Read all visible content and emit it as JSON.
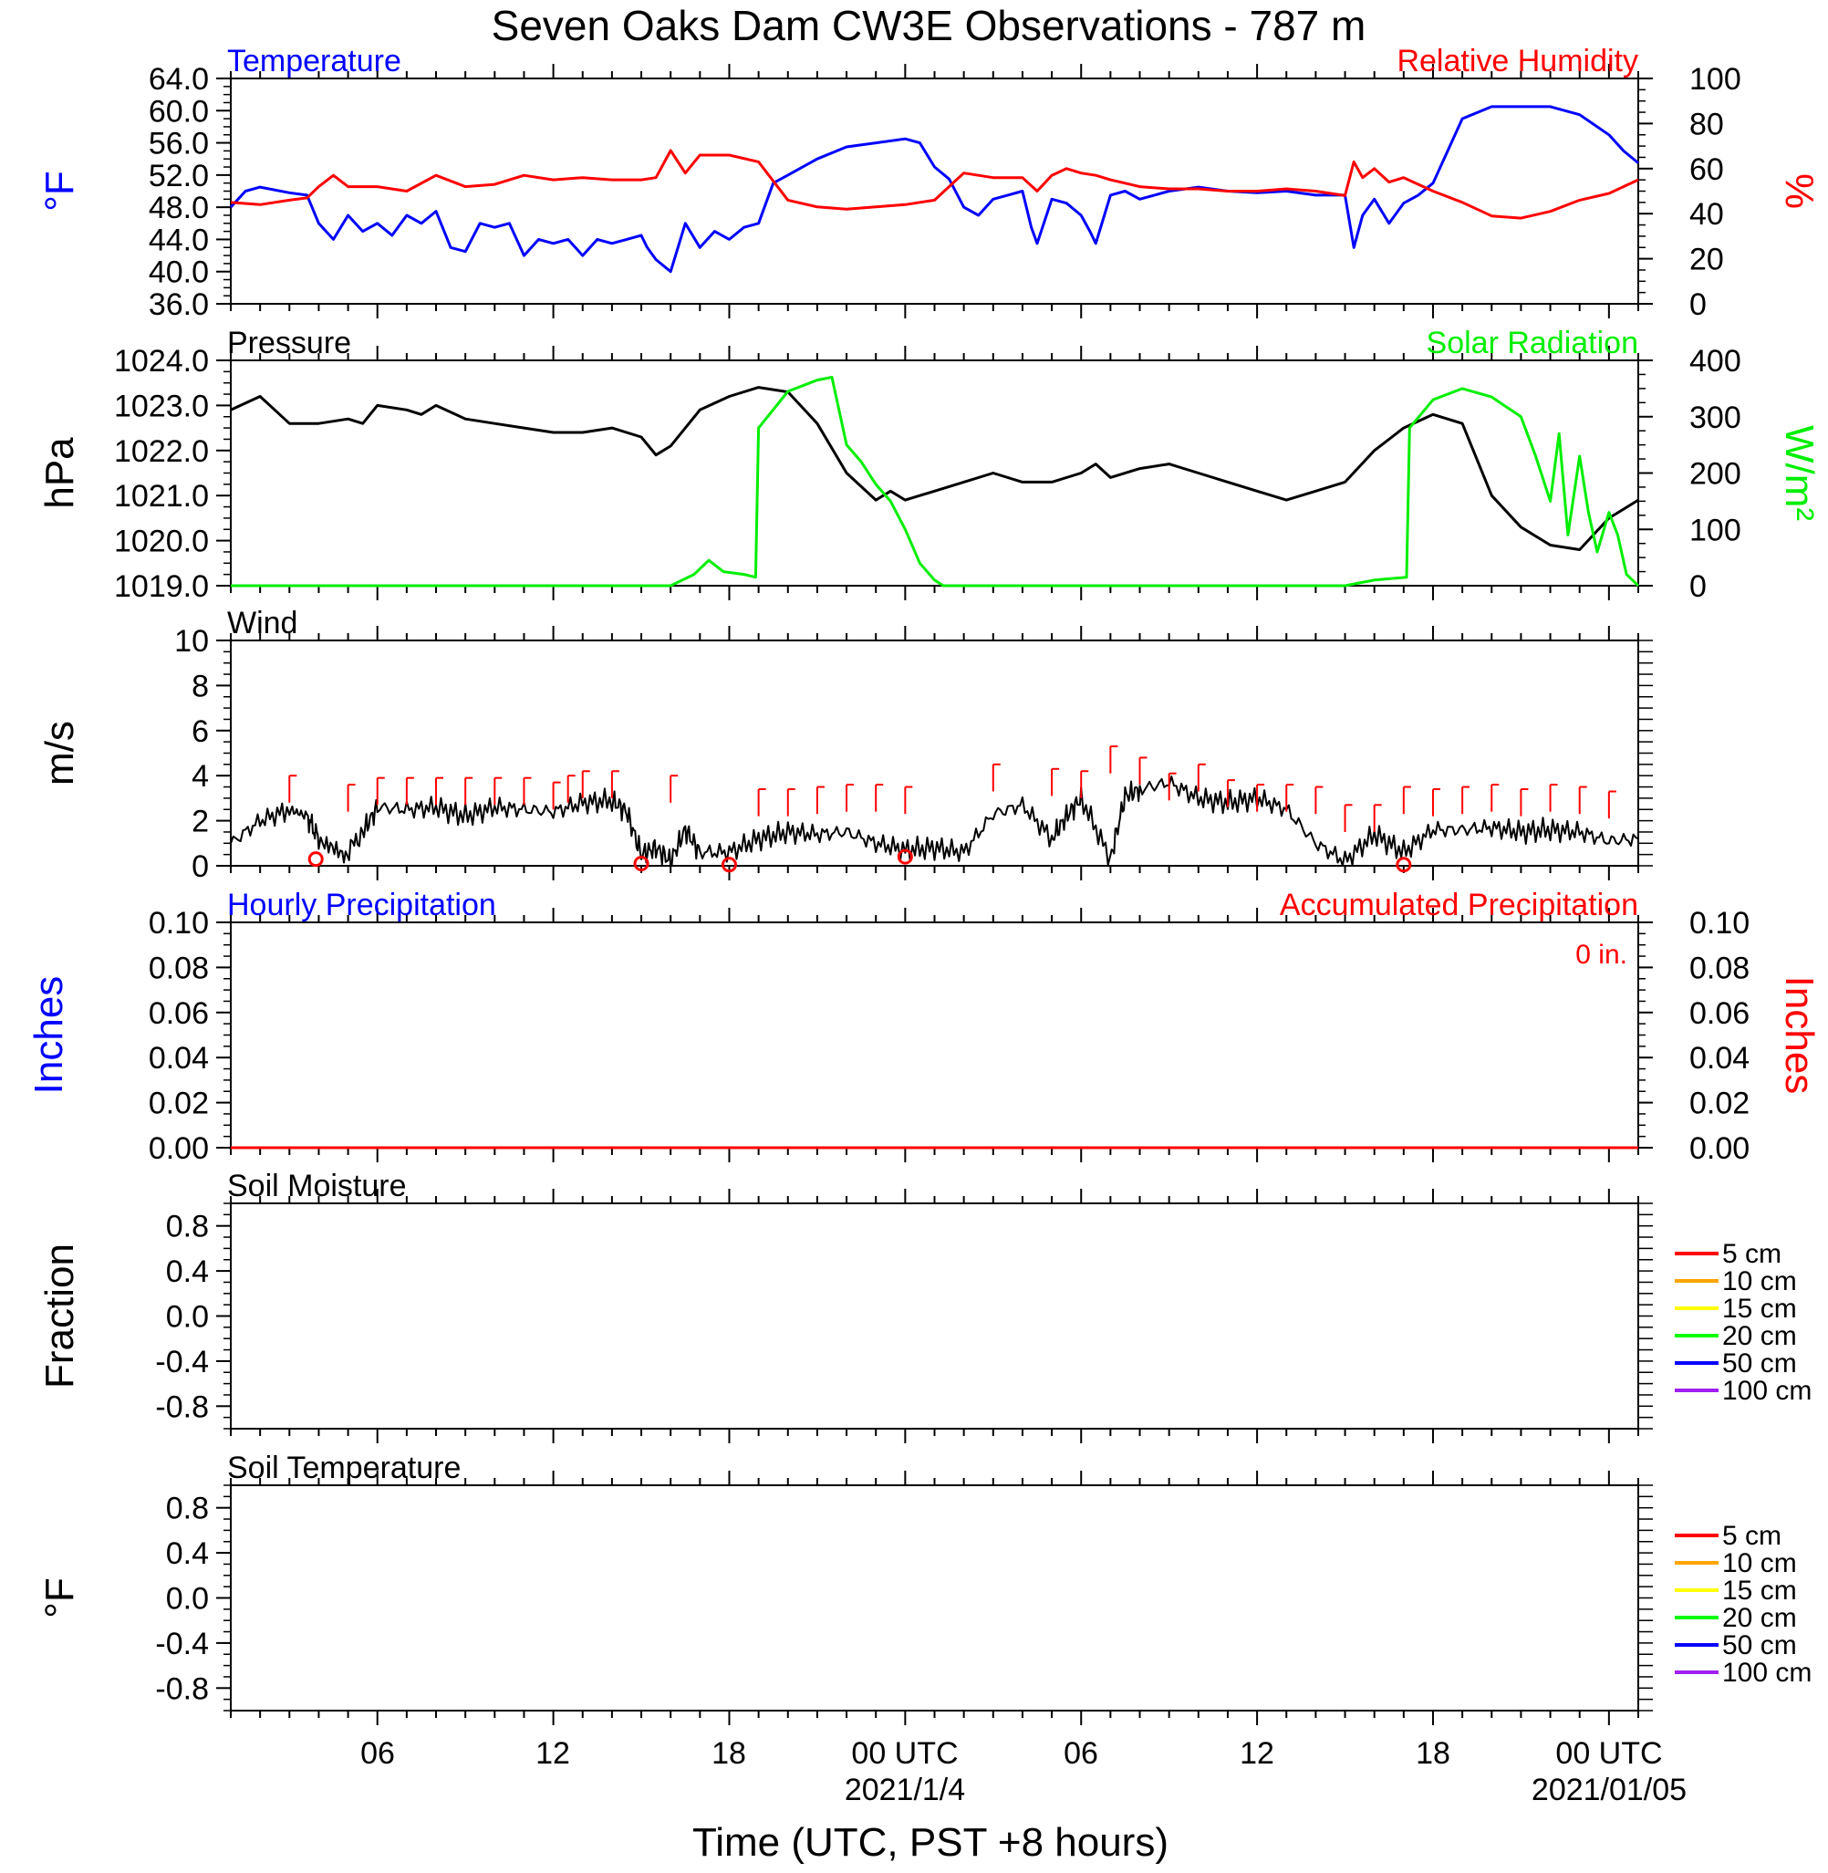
{
  "figure": {
    "title": "Seven Oaks Dam CW3E Observations - 787 m",
    "xlabel": "Time (UTC, PST +8 hours)",
    "x_ticks": [
      "06",
      "12",
      "18",
      "00 UTC",
      "06",
      "12",
      "18",
      "00 UTC"
    ],
    "x_dates": [
      "2021/1/4",
      "2021/01/05"
    ]
  },
  "colors": {
    "temperature": "#0000ff",
    "humidity": "#ff0000",
    "pressure": "#000000",
    "solar": "#00ee00",
    "wind": "#000000",
    "gust": "#ff0000",
    "hourly_precip": "#0000ff",
    "accum_precip": "#ff0000",
    "soil_layers": [
      "#ff0000",
      "#ffa500",
      "#ffff00",
      "#00ff00",
      "#0000ff",
      "#a020f0"
    ]
  },
  "chart_data": [
    {
      "id": "temp",
      "type": "line",
      "title_left": "Temperature",
      "title_right": "Relative Humidity",
      "ylabel_left": "°F",
      "ylabel_right": "%",
      "ylim": [
        36,
        64
      ],
      "ylim_right": [
        0,
        100
      ],
      "yticks_left": [
        "64.0",
        "60.0",
        "56.0",
        "52.0",
        "48.0",
        "44.0",
        "40.0",
        "36.0"
      ],
      "yticks_right": [
        "100",
        "80",
        "60",
        "40",
        "20",
        "0"
      ],
      "x_unit": "hours since 2021-01-03 01:00 UTC",
      "xlim": [
        0,
        48
      ],
      "series": [
        {
          "name": "Temperature",
          "axis": "left",
          "color": "#0000ff",
          "x": [
            0,
            0.5,
            1,
            2,
            2.6,
            3,
            3.5,
            4,
            4.5,
            5,
            5.5,
            6,
            6.5,
            7,
            7.5,
            8,
            8.5,
            9,
            9.5,
            10,
            10.5,
            11,
            11.5,
            12,
            12.5,
            13,
            13.5,
            14,
            14.2,
            14.5,
            15,
            15.5,
            16,
            16.5,
            17,
            17.5,
            18,
            18.5,
            19,
            20,
            21,
            22,
            23,
            23.5,
            24,
            24.5,
            25,
            25.5,
            26,
            26.5,
            27,
            27.3,
            27.5,
            28,
            28.5,
            29,
            29.3,
            29.5,
            30,
            30.5,
            31,
            31.5,
            32,
            33,
            34,
            35,
            36,
            37,
            38,
            38.3,
            38.6,
            39,
            39.5,
            40,
            40.5,
            41,
            42,
            43,
            44,
            45,
            46,
            47,
            47.5,
            48
          ],
          "y": [
            48,
            50,
            50.5,
            49.8,
            49.5,
            46,
            44,
            47,
            45,
            46,
            44.5,
            47,
            46,
            47.5,
            43,
            42.5,
            46,
            45.5,
            46,
            42,
            44,
            43.5,
            44,
            42,
            44,
            43.5,
            44,
            44.5,
            43,
            41.5,
            40,
            46,
            43,
            45,
            44,
            45.5,
            46,
            51,
            52,
            54,
            55.5,
            56,
            56.5,
            56,
            53,
            51.5,
            48,
            47,
            49,
            49.5,
            50,
            45.5,
            43.5,
            49,
            48.5,
            47,
            45,
            43.5,
            49.5,
            50,
            49,
            49.5,
            50,
            50.5,
            50,
            49.8,
            50,
            49.5,
            49.5,
            43,
            47,
            49,
            46,
            48.5,
            49.5,
            51,
            59,
            60.5,
            60.5,
            60.5,
            59.5,
            57,
            55,
            53.5
          ]
        },
        {
          "name": "Relative Humidity",
          "axis": "right",
          "color": "#ff0000",
          "x": [
            0,
            1,
            2,
            2.6,
            3,
            3.5,
            4,
            5,
            6,
            7,
            8,
            9,
            10,
            11,
            12,
            13,
            14,
            14.5,
            15,
            15.5,
            16,
            17,
            18,
            19,
            20,
            21,
            22,
            23,
            24,
            25,
            26,
            27,
            27.5,
            28,
            28.5,
            29,
            29.5,
            30,
            31,
            32,
            33,
            34,
            35,
            36,
            37,
            38,
            38.3,
            38.6,
            39,
            39.5,
            40,
            41,
            42,
            43,
            44,
            45,
            46,
            47,
            48
          ],
          "y": [
            45,
            44,
            46,
            47,
            52,
            57,
            52,
            52,
            50,
            57,
            52,
            53,
            57,
            55,
            56,
            55,
            55,
            56,
            68,
            58,
            66,
            66,
            63,
            46,
            43,
            42,
            43,
            44,
            46,
            58,
            56,
            56,
            50,
            57,
            60,
            58,
            57,
            55,
            52,
            51,
            51,
            50,
            50,
            51,
            50,
            48,
            63,
            56,
            60,
            54,
            56,
            50,
            45,
            39,
            38,
            41,
            46,
            49,
            55
          ]
        }
      ]
    },
    {
      "id": "pres",
      "type": "line",
      "title_left": "Pressure",
      "title_right": "Solar Radiation",
      "ylabel_left": "hPa",
      "ylabel_right": "W/m²",
      "ylim": [
        1019,
        1024
      ],
      "ylim_right": [
        0,
        400
      ],
      "yticks_left": [
        "1024.0",
        "1023.0",
        "1022.0",
        "1021.0",
        "1020.0",
        "1019.0"
      ],
      "yticks_right": [
        "400",
        "300",
        "200",
        "100",
        "0"
      ],
      "x_unit": "hours since 2021-01-03 01:00 UTC",
      "xlim": [
        0,
        48
      ],
      "series": [
        {
          "name": "Pressure",
          "axis": "left",
          "color": "#000000",
          "x": [
            0,
            1,
            1.5,
            2,
            3,
            4,
            4.5,
            5,
            6,
            6.5,
            7,
            8,
            9,
            10,
            11,
            12,
            13,
            14,
            14.5,
            15,
            16,
            17,
            18,
            19,
            20,
            21,
            22,
            22.5,
            23,
            23.5,
            24,
            25,
            26,
            27,
            28,
            29,
            29.5,
            30,
            31,
            32,
            33,
            34,
            35,
            36,
            37,
            38,
            39,
            40,
            41,
            42,
            43,
            44,
            45,
            46,
            47,
            48
          ],
          "x_note": "",
          "y": [
            1022.9,
            1023.2,
            1022.9,
            1022.6,
            1022.6,
            1022.7,
            1022.6,
            1023.0,
            1022.9,
            1022.8,
            1023.0,
            1022.7,
            1022.6,
            1022.5,
            1022.4,
            1022.4,
            1022.5,
            1022.3,
            1021.9,
            1022.1,
            1022.9,
            1023.2,
            1023.4,
            1023.3,
            1022.6,
            1021.5,
            1020.9,
            1021.1,
            1020.9,
            1021.0,
            1021.1,
            1021.3,
            1021.5,
            1021.3,
            1021.3,
            1021.5,
            1021.7,
            1021.4,
            1021.6,
            1021.7,
            1021.5,
            1021.3,
            1021.1,
            1020.9,
            1021.1,
            1021.3,
            1022.0,
            1022.5,
            1022.8,
            1022.6,
            1021.0,
            1020.3,
            1019.9,
            1019.8,
            1020.5,
            1020.9
          ]
        },
        {
          "name": "Solar Radiation",
          "axis": "right",
          "color": "#00ee00",
          "x": [
            0,
            14,
            15,
            15.8,
            16.3,
            16.8,
            17.5,
            17.9,
            18,
            19,
            20,
            20.5,
            21,
            21.5,
            22,
            22.5,
            23,
            23.5,
            24,
            24.3,
            25,
            38,
            39,
            40.1,
            40.2,
            41,
            42,
            43,
            44,
            44.5,
            45,
            45.3,
            45.6,
            46,
            46.3,
            46.6,
            47,
            47.3,
            47.6,
            48
          ],
          "y": [
            0,
            0,
            0,
            20,
            45,
            25,
            20,
            15,
            280,
            345,
            365,
            370,
            250,
            220,
            180,
            150,
            100,
            40,
            10,
            0,
            0,
            0,
            10,
            15,
            280,
            330,
            350,
            335,
            300,
            230,
            150,
            270,
            90,
            230,
            130,
            60,
            130,
            90,
            20,
            0
          ]
        }
      ]
    },
    {
      "id": "wind",
      "type": "line",
      "title_left": "Wind",
      "ylabel_left": "m/s",
      "ylim": [
        0,
        10
      ],
      "yticks_left": [
        "10",
        "8",
        "6",
        "4",
        "2",
        "0"
      ],
      "x_unit": "hours since 2021-01-03 01:00 UTC",
      "xlim": [
        0,
        48
      ],
      "series": [
        {
          "name": "Wind speed",
          "axis": "left",
          "color": "#000000",
          "x": [
            0,
            1,
            2,
            2.6,
            3,
            3.8,
            4.5,
            5,
            6,
            7,
            8,
            9,
            10,
            11,
            12,
            13,
            13.5,
            14,
            14.5,
            15,
            15.5,
            16,
            17,
            18,
            19,
            20,
            21,
            22,
            23,
            24,
            25,
            26,
            27,
            28,
            28.5,
            29,
            30,
            30.5,
            31,
            32,
            33,
            34,
            35,
            36,
            37,
            38,
            39,
            40,
            41,
            42,
            43,
            44,
            45,
            46,
            47,
            48
          ],
          "y": [
            1.0,
            2.0,
            2.5,
            2.2,
            1.2,
            0.3,
            1.5,
            2.6,
            2.5,
            2.6,
            2.2,
            2.6,
            2.5,
            2.4,
            2.8,
            2.9,
            2.4,
            0.5,
            0.8,
            0.2,
            1.6,
            0.6,
            0.6,
            1.2,
            1.5,
            1.4,
            1.5,
            1.0,
            0.7,
            0.8,
            0.6,
            2.3,
            2.7,
            1.2,
            2.2,
            3.0,
            0.3,
            3.1,
            3.4,
            3.7,
            3.0,
            2.8,
            3.0,
            2.5,
            1.0,
            0.2,
            1.4,
            0.6,
            1.6,
            1.6,
            1.7,
            1.5,
            1.6,
            1.5,
            1.1,
            1.2
          ]
        },
        {
          "name": "Gust",
          "axis": "left",
          "color": "#ff0000",
          "x": [
            2,
            4,
            5,
            6,
            7,
            8,
            9,
            10,
            11,
            11.5,
            12,
            13,
            15,
            18,
            19,
            20,
            21,
            22,
            23,
            26,
            28,
            29,
            30,
            31,
            32,
            33,
            34,
            35,
            36,
            37,
            38,
            39,
            40,
            41,
            42,
            43,
            44,
            45,
            46,
            47
          ],
          "y": [
            4.0,
            3.6,
            3.9,
            3.9,
            3.9,
            3.9,
            3.9,
            3.9,
            3.7,
            4.0,
            4.2,
            4.2,
            4.0,
            3.4,
            3.4,
            3.5,
            3.6,
            3.6,
            3.5,
            4.5,
            4.3,
            4.2,
            5.3,
            4.8,
            4.1,
            4.5,
            3.8,
            3.6,
            3.6,
            3.5,
            2.7,
            2.7,
            3.5,
            3.4,
            3.5,
            3.6,
            3.4,
            3.6,
            3.5,
            3.3
          ]
        },
        {
          "name": "Calm markers",
          "axis": "left",
          "color": "#ff0000",
          "x": [
            2.9,
            14,
            17,
            23,
            40
          ],
          "y": [
            0.3,
            0.1,
            0.05,
            0.4,
            0.05
          ]
        }
      ]
    },
    {
      "id": "precip",
      "type": "line",
      "title_left": "Hourly Precipitation",
      "title_right": "Accumulated Precipitation",
      "annotation": "0 in.",
      "ylabel_left": "Inches",
      "ylabel_right": "Inches",
      "ylim": [
        0,
        0.1
      ],
      "ylim_right": [
        0,
        0.1
      ],
      "yticks_left": [
        "0.10",
        "0.08",
        "0.06",
        "0.04",
        "0.02",
        "0.00"
      ],
      "yticks_right": [
        "0.10",
        "0.08",
        "0.06",
        "0.04",
        "0.02",
        "0.00"
      ],
      "x_unit": "hours since 2021-01-03 01:00 UTC",
      "xlim": [
        0,
        48
      ],
      "series": [
        {
          "name": "Accumulated Precipitation",
          "axis": "right",
          "color": "#ff0000",
          "x": [
            0,
            48
          ],
          "y": [
            0,
            0
          ]
        }
      ]
    },
    {
      "id": "soilm",
      "type": "line",
      "title_left": "Soil Moisture",
      "ylabel_left": "Fraction",
      "ylim": [
        -1,
        1
      ],
      "yticks_left": [
        "0.8",
        "0.4",
        "0.0",
        "-0.4",
        "-0.8"
      ],
      "legend": [
        "5 cm",
        "10 cm",
        "15 cm",
        "20 cm",
        "50 cm",
        "100 cm"
      ],
      "series": []
    },
    {
      "id": "soilt",
      "type": "line",
      "title_left": "Soil Temperature",
      "ylabel_left": "°F",
      "ylim": [
        -1,
        1
      ],
      "yticks_left": [
        "0.8",
        "0.4",
        "0.0",
        "-0.4",
        "-0.8"
      ],
      "legend": [
        "5 cm",
        "10 cm",
        "15 cm",
        "20 cm",
        "50 cm",
        "100 cm"
      ],
      "series": []
    }
  ]
}
